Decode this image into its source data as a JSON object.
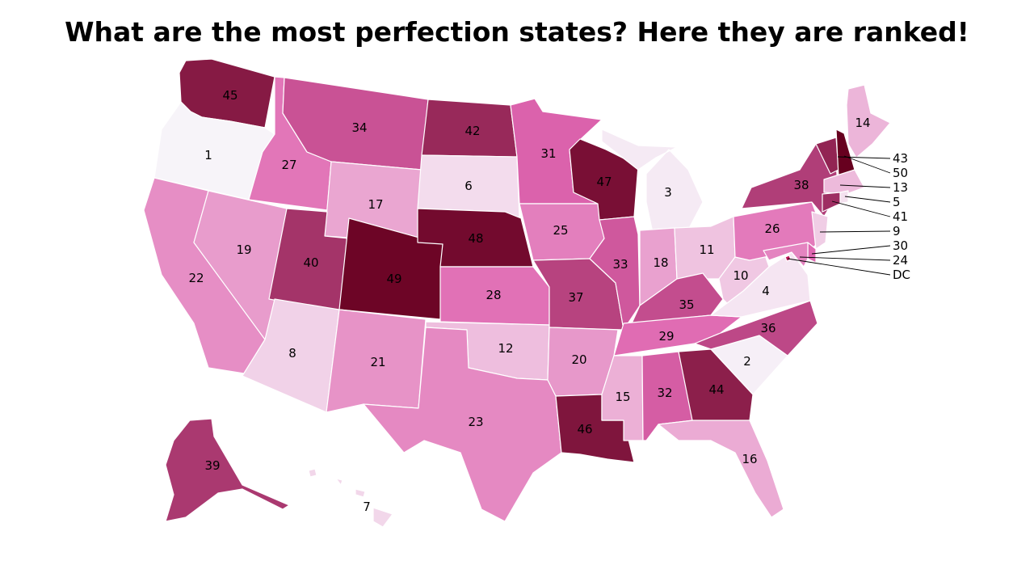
{
  "title": "What are the most perfection states? Here they are ranked!",
  "color_scale": {
    "low": "#f7f4f9",
    "mid": "#df65b0",
    "high": "#67001f"
  },
  "states": [
    {
      "id": "WA",
      "rank": "45"
    },
    {
      "id": "OR",
      "rank": "1"
    },
    {
      "id": "CA",
      "rank": "22"
    },
    {
      "id": "ID",
      "rank": "27"
    },
    {
      "id": "NV",
      "rank": "19"
    },
    {
      "id": "MT",
      "rank": "34"
    },
    {
      "id": "WY",
      "rank": "17"
    },
    {
      "id": "UT",
      "rank": "40"
    },
    {
      "id": "AZ",
      "rank": "8"
    },
    {
      "id": "CO",
      "rank": "49"
    },
    {
      "id": "NM",
      "rank": "21"
    },
    {
      "id": "ND",
      "rank": "42"
    },
    {
      "id": "SD",
      "rank": "6"
    },
    {
      "id": "NE",
      "rank": "48"
    },
    {
      "id": "KS",
      "rank": "28"
    },
    {
      "id": "OK",
      "rank": "12"
    },
    {
      "id": "TX",
      "rank": "23"
    },
    {
      "id": "MN",
      "rank": "31"
    },
    {
      "id": "IA",
      "rank": "25"
    },
    {
      "id": "MO",
      "rank": "37"
    },
    {
      "id": "AR",
      "rank": "20"
    },
    {
      "id": "LA",
      "rank": "46"
    },
    {
      "id": "WI",
      "rank": "47"
    },
    {
      "id": "IL",
      "rank": "33"
    },
    {
      "id": "MI",
      "rank": "3"
    },
    {
      "id": "IN",
      "rank": "18"
    },
    {
      "id": "OH",
      "rank": "11"
    },
    {
      "id": "KY",
      "rank": "35"
    },
    {
      "id": "TN",
      "rank": "29"
    },
    {
      "id": "MS",
      "rank": "15"
    },
    {
      "id": "AL",
      "rank": "32"
    },
    {
      "id": "GA",
      "rank": "44"
    },
    {
      "id": "FL",
      "rank": "16"
    },
    {
      "id": "SC",
      "rank": "2"
    },
    {
      "id": "NC",
      "rank": "36"
    },
    {
      "id": "VA",
      "rank": "4"
    },
    {
      "id": "WV",
      "rank": "10"
    },
    {
      "id": "PA",
      "rank": "26"
    },
    {
      "id": "NY",
      "rank": "38"
    },
    {
      "id": "ME",
      "rank": "14"
    },
    {
      "id": "AK",
      "rank": "39"
    },
    {
      "id": "HI",
      "rank": "7"
    },
    {
      "id": "VT",
      "rank": "43"
    },
    {
      "id": "NH",
      "rank": "50"
    },
    {
      "id": "MA",
      "rank": "13"
    },
    {
      "id": "RI",
      "rank": "5"
    },
    {
      "id": "CT",
      "rank": "41"
    },
    {
      "id": "NJ",
      "rank": "9"
    },
    {
      "id": "DE",
      "rank": "30"
    },
    {
      "id": "MD",
      "rank": "24"
    },
    {
      "id": "DC",
      "rank": "DC"
    }
  ]
}
